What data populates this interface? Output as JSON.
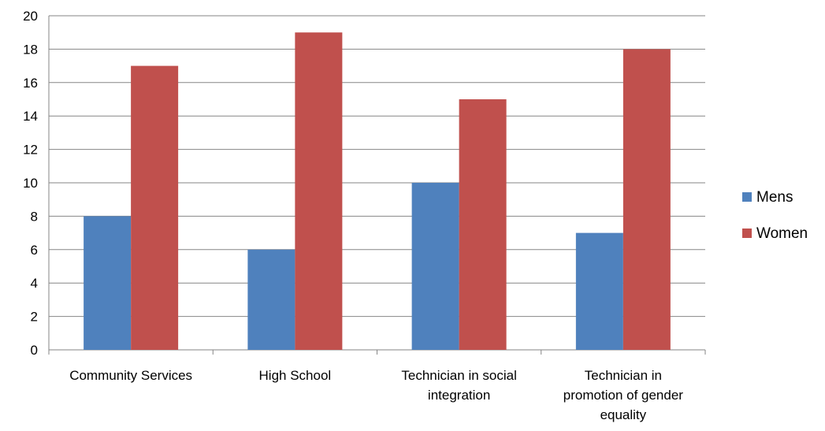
{
  "chart_data": {
    "type": "bar",
    "categories": [
      [
        "Community Services"
      ],
      [
        "High School"
      ],
      [
        "Technician in social",
        "integration"
      ],
      [
        "Technician in",
        "promotion of gender",
        "equality"
      ]
    ],
    "series": [
      {
        "name": "Mens",
        "color": "#4F81BD",
        "values": [
          8,
          6,
          10,
          7
        ]
      },
      {
        "name": "Women",
        "color": "#C0504D",
        "values": [
          17,
          19,
          15,
          18
        ]
      }
    ],
    "ylim": [
      0,
      20
    ],
    "yticks": [
      0,
      2,
      4,
      6,
      8,
      10,
      12,
      14,
      16,
      18,
      20
    ],
    "grid": true,
    "legend_position": "right"
  }
}
